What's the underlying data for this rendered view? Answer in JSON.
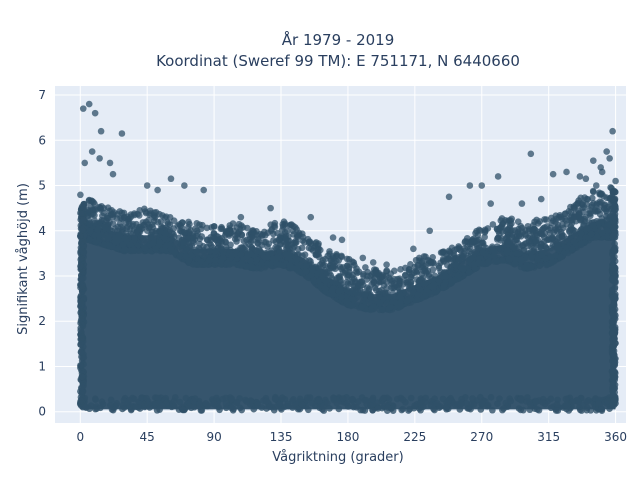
{
  "chart_data": {
    "type": "scatter",
    "title": "År 1979 - 2019",
    "subtitle": "Koordinat (Sweref 99 TM): E 751171, N 6440660",
    "xlabel": "Vågriktning (grader)",
    "ylabel": "Signifikant våghöjd (m)",
    "xlim": [
      -17,
      367
    ],
    "ylim": [
      -0.25,
      7.2
    ],
    "xticks": [
      "0",
      "45",
      "90",
      "135",
      "180",
      "225",
      "270",
      "315",
      "360"
    ],
    "yticks": [
      "0",
      "1",
      "2",
      "3",
      "4",
      "5",
      "6",
      "7"
    ],
    "grid": true,
    "legend": "none",
    "colors": {
      "plot_bg": "#e5ecf6",
      "grid": "#ffffff",
      "marker": "#2f5068",
      "text": "#2a3f5f"
    },
    "density_envelope": {
      "x": [
        0,
        10,
        20,
        30,
        45,
        60,
        75,
        90,
        105,
        120,
        135,
        150,
        165,
        180,
        195,
        210,
        225,
        240,
        255,
        270,
        285,
        300,
        315,
        330,
        345,
        360
      ],
      "dense_top": [
        4.2,
        4.1,
        4.0,
        3.9,
        3.9,
        3.9,
        3.6,
        3.6,
        3.6,
        3.5,
        3.6,
        3.4,
        3.0,
        2.7,
        2.6,
        2.6,
        2.8,
        3.0,
        3.3,
        3.6,
        3.7,
        3.5,
        3.6,
        3.9,
        4.2,
        4.2
      ],
      "scatter_top": [
        4.9,
        4.6,
        4.5,
        4.4,
        4.5,
        4.3,
        4.2,
        4.1,
        4.2,
        4.0,
        4.3,
        4.0,
        3.6,
        3.4,
        3.2,
        3.1,
        3.4,
        3.5,
        3.7,
        4.1,
        4.3,
        4.2,
        4.3,
        4.6,
        4.9,
        5.1
      ]
    },
    "outliers": {
      "x": [
        2,
        6,
        10,
        14,
        20,
        28,
        3,
        8,
        13,
        22,
        45,
        52,
        61,
        70,
        83,
        108,
        128,
        137,
        143,
        155,
        170,
        176,
        190,
        197,
        206,
        224,
        235,
        248,
        262,
        270,
        276,
        281,
        297,
        303,
        310,
        318,
        327,
        336,
        340,
        345,
        350,
        354,
        358,
        360,
        347,
        351,
        356
      ],
      "y": [
        6.7,
        6.8,
        6.6,
        6.2,
        5.5,
        6.15,
        5.5,
        5.75,
        5.6,
        5.25,
        5.0,
        4.9,
        5.15,
        5.0,
        4.9,
        4.3,
        4.5,
        4.2,
        4.0,
        4.3,
        3.85,
        3.8,
        3.4,
        3.3,
        3.25,
        3.6,
        4.0,
        4.75,
        5.0,
        5.0,
        4.6,
        5.2,
        4.6,
        5.7,
        4.7,
        5.25,
        5.3,
        5.2,
        5.15,
        5.55,
        5.4,
        5.75,
        6.2,
        5.1,
        5.0,
        5.3,
        5.6
      ]
    }
  }
}
